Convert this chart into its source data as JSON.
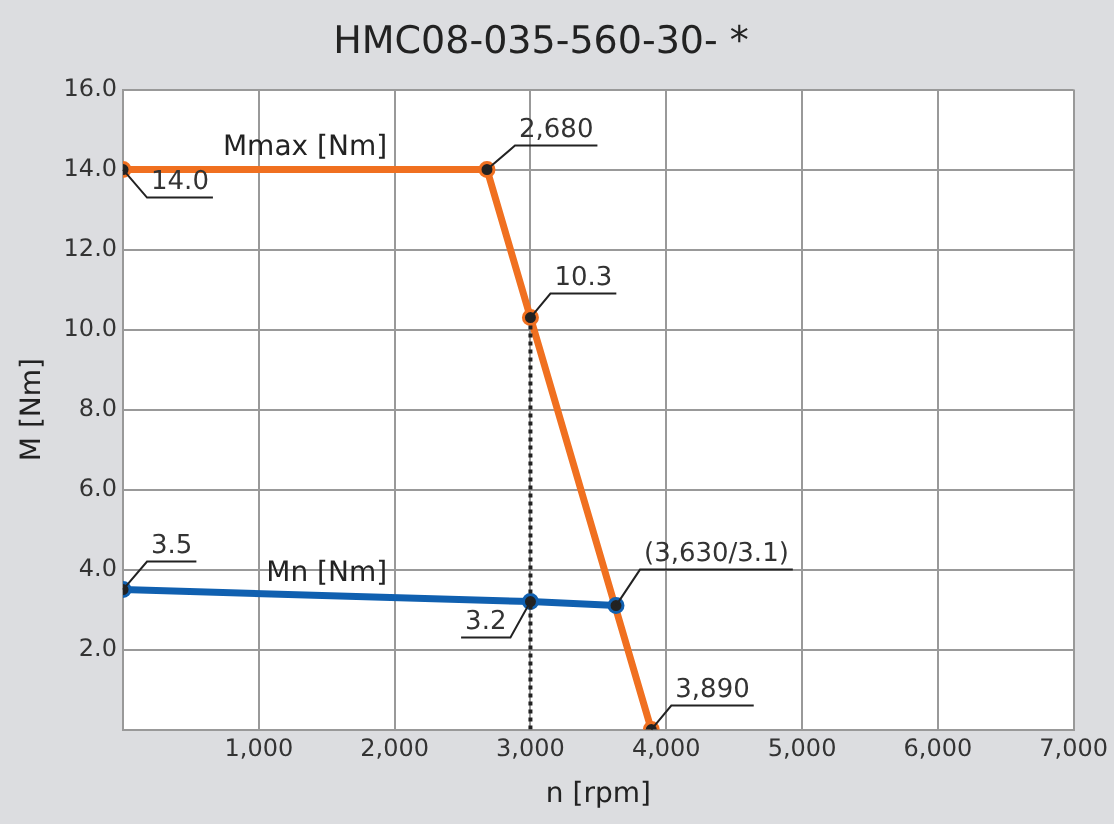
{
  "chart_data": {
    "type": "line",
    "title": "HMC08-035-560-30- *",
    "xlabel": "n [rpm]",
    "ylabel": "M [Nm]",
    "series": [
      {
        "name": "Mmax [Nm]",
        "color": "#f07020",
        "x": [
          0,
          2680,
          3000,
          3890
        ],
        "values": [
          14,
          14,
          10.3,
          0
        ]
      },
      {
        "name": "Mn [Nm]",
        "color": "#1060b0",
        "x": [
          0,
          3000,
          3630
        ],
        "values": [
          3.5,
          3.2,
          3.1
        ]
      },
      {
        "color": "#222222",
        "x": [
          3000,
          3000
        ],
        "values": [
          0,
          10.3
        ],
        "line_style": "dotted",
        "marker": "none"
      }
    ],
    "annotations": [
      {
        "text": "14.0",
        "x": 0,
        "y": 14
      },
      {
        "text": "2,680",
        "x": 2680,
        "y": 14
      },
      {
        "text": "10.3",
        "x": 3000,
        "y": 10.3
      },
      {
        "text": "3,890",
        "x": 3890,
        "y": 0
      },
      {
        "text": "3.5",
        "x": 0,
        "y": 3.5
      },
      {
        "text": "3.2",
        "x": 3000,
        "y": 3.2
      },
      {
        "text": "(3,630/3.1)",
        "x": 3630,
        "y": 3.1
      }
    ],
    "xlim": [
      0,
      7000
    ],
    "xticks": [
      {
        "value": 1000,
        "label": "1,000"
      },
      {
        "value": 2000,
        "label": "2,000"
      },
      {
        "value": 3000,
        "label": "3,000"
      },
      {
        "value": 4000,
        "label": "4,000"
      },
      {
        "value": 5000,
        "label": "5,000"
      },
      {
        "value": 6000,
        "label": "6,000"
      },
      {
        "value": 7000,
        "label": "7,000"
      }
    ],
    "ylim": [
      0,
      16
    ],
    "yticks": [
      {
        "value": 2,
        "label": "2.0"
      },
      {
        "value": 4,
        "label": "4.0"
      },
      {
        "value": 6,
        "label": "6.0"
      },
      {
        "value": 8,
        "label": "8.0"
      },
      {
        "value": 10,
        "label": "10.0"
      },
      {
        "value": 12,
        "label": "12.0"
      },
      {
        "value": 14,
        "label": "14.0"
      },
      {
        "value": 16,
        "label": "16.0"
      }
    ],
    "grid": true,
    "legend": false,
    "marker": "circle",
    "line_style": "solid"
  }
}
